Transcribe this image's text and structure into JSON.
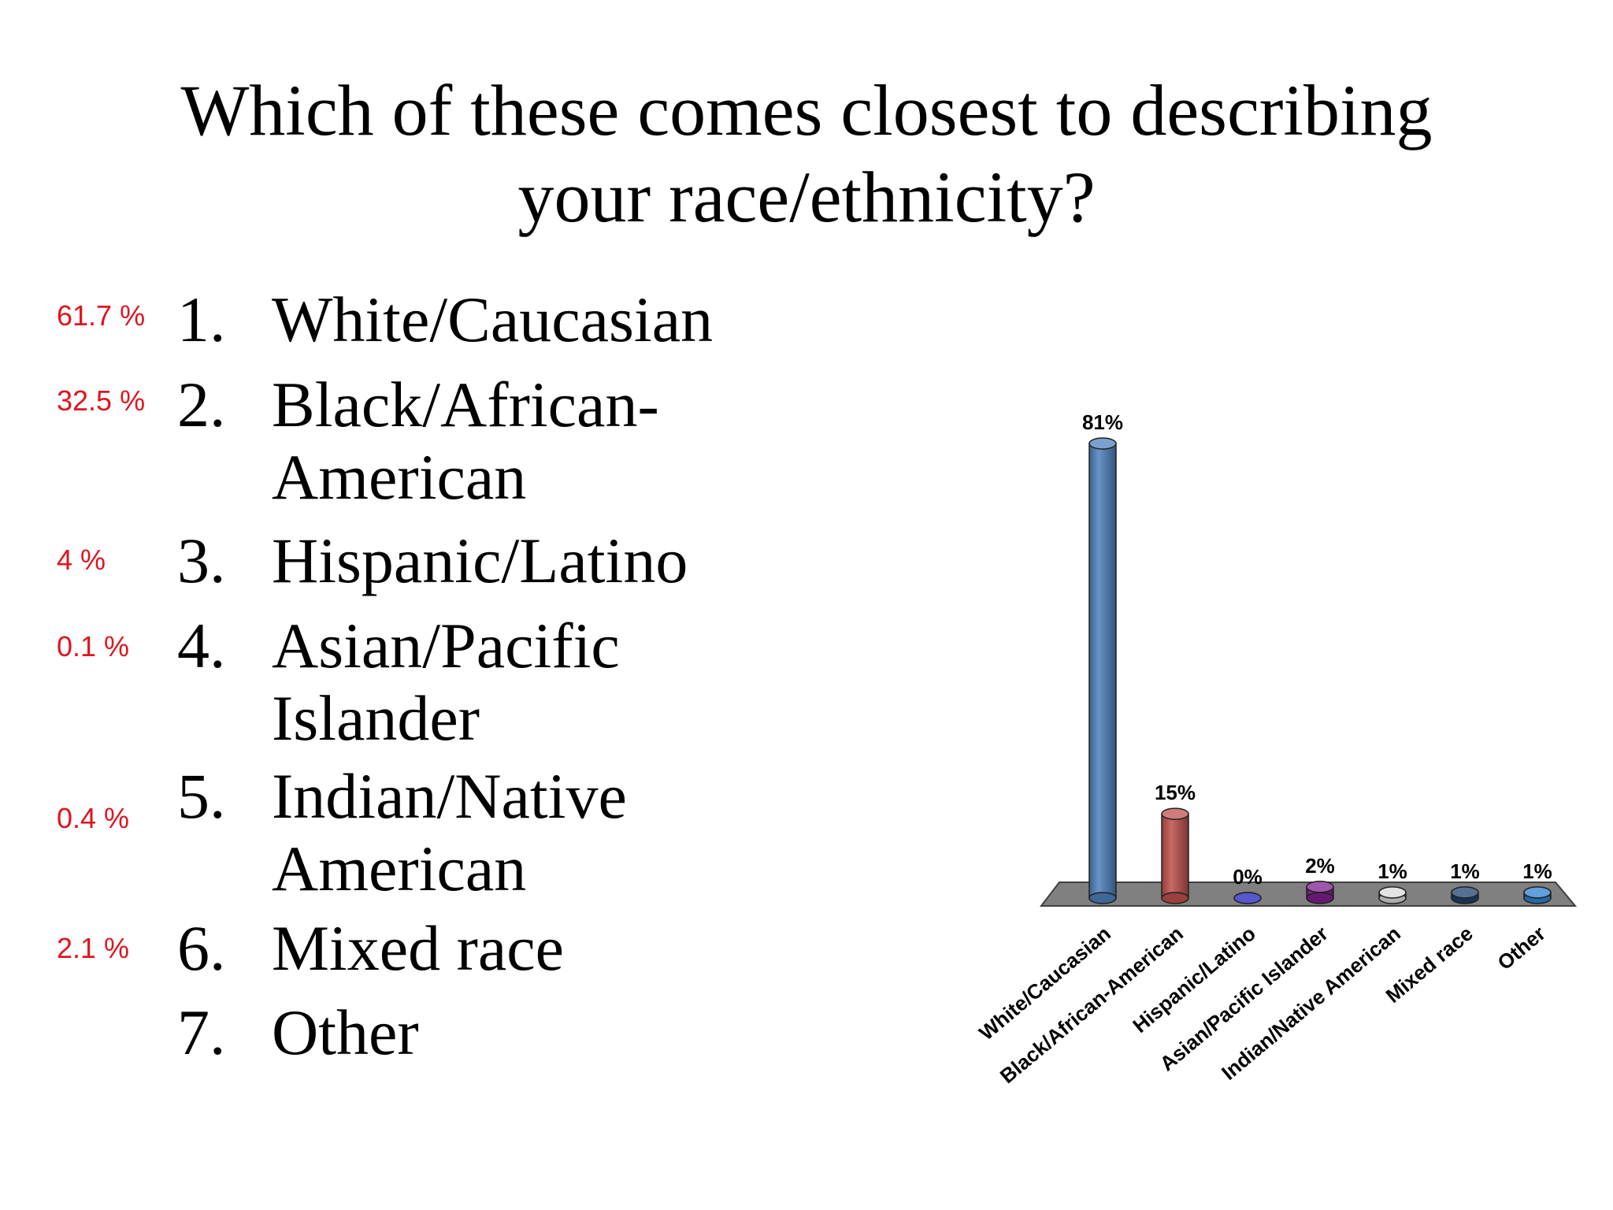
{
  "slide": {
    "title_lines": [
      "Which of these comes closest to describing",
      "your race/ethnicity?"
    ],
    "options": [
      {
        "num": "1.",
        "pct": "61.7 %",
        "label_lines": [
          "White/Caucasian"
        ]
      },
      {
        "num": "2.",
        "pct": "32.5 %",
        "label_lines": [
          "Black/African-",
          "American"
        ]
      },
      {
        "num": "3.",
        "pct": "4 %",
        "label_lines": [
          "Hispanic/Latino"
        ]
      },
      {
        "num": "4.",
        "pct": "0.1 %",
        "label_lines": [
          "Asian/Pacific",
          "Islander"
        ]
      },
      {
        "num": "5.",
        "pct": "0.4 %",
        "label_lines": [
          "Indian/Native",
          "American"
        ]
      },
      {
        "num": "6.",
        "pct": "2.1 %",
        "label_lines": [
          "Mixed race"
        ]
      },
      {
        "num": "7.",
        "pct": "",
        "label_lines": [
          "Other"
        ]
      }
    ]
  },
  "chart_data": {
    "type": "bar",
    "title": "",
    "xlabel": "",
    "ylabel": "",
    "categories": [
      "White/Caucasian",
      "Black/African-American",
      "Hispanic/Latino",
      "Asian/Pacific Islander",
      "Indian/Native American",
      "Mixed race",
      "Other"
    ],
    "values": [
      81,
      15,
      0,
      2,
      1,
      1,
      1
    ],
    "data_labels": [
      "81%",
      "15%",
      "0%",
      "2%",
      "1%",
      "1%",
      "1%"
    ],
    "ylim": [
      0,
      81
    ],
    "grid": false,
    "legend": "none",
    "style": "3d-cylinder",
    "colors": [
      "#4f81bd",
      "#c0504d",
      "#1f1fbf",
      "#7f1f8f",
      "#d9d9d9",
      "#1f3f6f",
      "#2f7fcf"
    ],
    "floor_color": "#808080"
  }
}
